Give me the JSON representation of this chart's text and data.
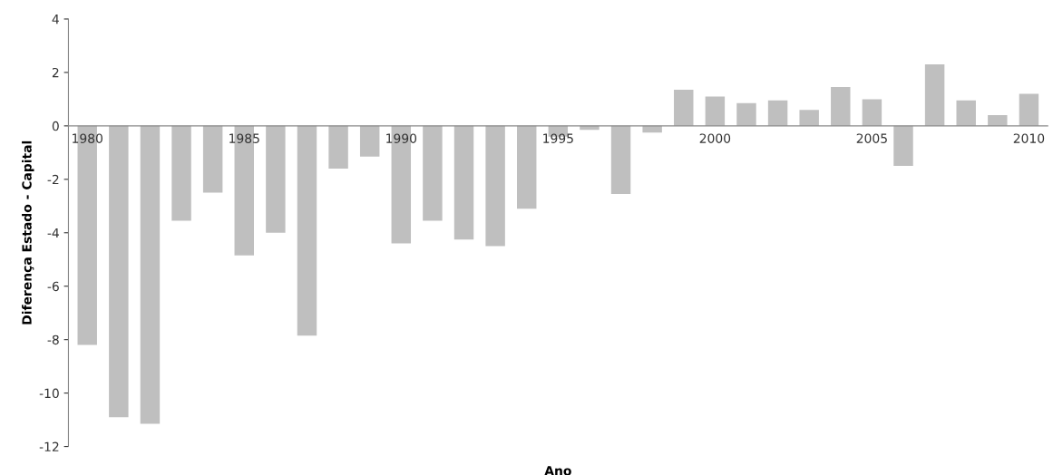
{
  "chart_data": {
    "type": "bar",
    "xlabel": "Ano",
    "ylabel": "Diferença Estado - Capital",
    "categories": [
      "1980",
      null,
      null,
      null,
      null,
      "1985",
      null,
      null,
      null,
      null,
      "1990",
      null,
      null,
      null,
      null,
      "1995",
      null,
      null,
      null,
      null,
      "2000",
      null,
      null,
      null,
      null,
      "2005",
      null,
      null,
      null,
      null,
      "2010"
    ],
    "values": [
      -8.2,
      -10.9,
      -11.15,
      -3.55,
      -2.5,
      -4.85,
      -4.0,
      -7.85,
      -1.6,
      -1.15,
      -4.4,
      -3.55,
      -4.25,
      -4.5,
      -3.1,
      -0.4,
      -0.15,
      -2.55,
      -0.25,
      1.35,
      1.1,
      0.85,
      0.95,
      0.6,
      1.45,
      1.0,
      -1.5,
      2.3,
      0.95,
      0.4,
      1.2
    ],
    "color": "#bfbfbf",
    "ylim": [
      -12,
      4
    ],
    "yticks": [
      -12,
      -10,
      -8,
      -6,
      -4,
      -2,
      0,
      2,
      4
    ],
    "grid": false
  }
}
